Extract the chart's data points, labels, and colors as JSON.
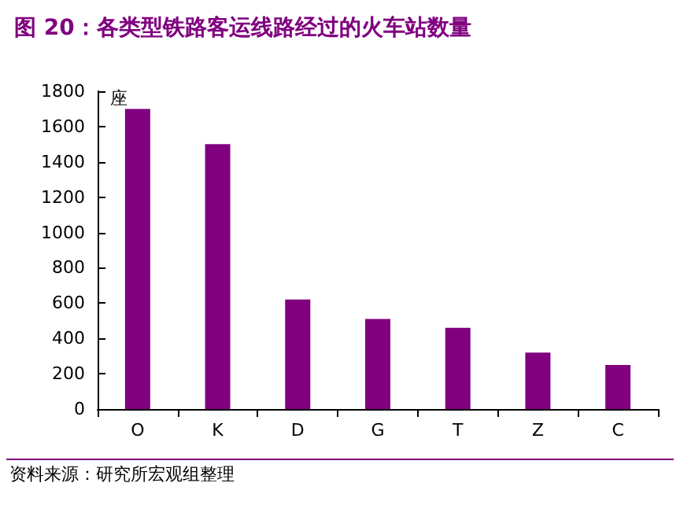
{
  "chart_data": {
    "type": "bar",
    "title": "图 20：各类型铁路客运线路经过的火车站数量",
    "ylabel": "座",
    "categories": [
      "O",
      "K",
      "D",
      "G",
      "T",
      "Z",
      "C"
    ],
    "values": [
      1700,
      1500,
      620,
      510,
      460,
      320,
      250
    ],
    "color": "#800080",
    "ylim": [
      0,
      1800
    ],
    "yticks": [
      0,
      200,
      400,
      600,
      800,
      1000,
      1200,
      1400,
      1600,
      1800
    ],
    "grid": false,
    "annotations": [
      "资料来源：研究所宏观组整理"
    ]
  }
}
